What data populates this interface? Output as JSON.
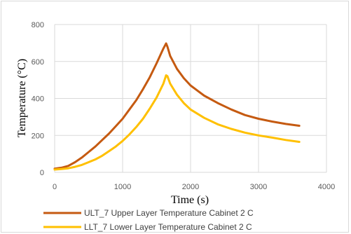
{
  "chart_data": {
    "type": "line",
    "title": "",
    "xlabel": "Time (s)",
    "ylabel": "Temperature (°C)",
    "xlim": [
      0,
      4000
    ],
    "ylim": [
      0,
      800
    ],
    "x_ticks": [
      0,
      1000,
      2000,
      3000,
      4000
    ],
    "y_ticks": [
      0,
      200,
      400,
      600,
      800
    ],
    "grid": true,
    "legend_position": "bottom",
    "series": [
      {
        "name": "ULT_7 Upper Layer Temperature Cabinet  2 C",
        "color": "#c55a11",
        "x": [
          0,
          100,
          200,
          300,
          400,
          500,
          600,
          700,
          800,
          900,
          1000,
          1100,
          1200,
          1300,
          1400,
          1500,
          1600,
          1640,
          1660,
          1700,
          1800,
          1900,
          2000,
          2200,
          2400,
          2600,
          2800,
          3000,
          3200,
          3400,
          3600
        ],
        "y": [
          20,
          25,
          35,
          55,
          80,
          110,
          140,
          175,
          210,
          250,
          290,
          340,
          390,
          450,
          515,
          590,
          670,
          698,
          680,
          630,
          560,
          510,
          470,
          415,
          375,
          340,
          310,
          290,
          275,
          262,
          252
        ]
      },
      {
        "name": "LLT_7 Lower Layer Temperature Cabinet  2 C",
        "color": "#ffc000",
        "x": [
          0,
          100,
          200,
          300,
          400,
          500,
          600,
          700,
          800,
          900,
          1000,
          1100,
          1200,
          1300,
          1400,
          1500,
          1600,
          1640,
          1660,
          1700,
          1800,
          1900,
          2000,
          2200,
          2400,
          2600,
          2800,
          3000,
          3200,
          3400,
          3600
        ],
        "y": [
          15,
          18,
          22,
          30,
          40,
          55,
          70,
          90,
          115,
          140,
          170,
          205,
          245,
          290,
          345,
          405,
          480,
          525,
          520,
          480,
          420,
          375,
          340,
          295,
          260,
          235,
          215,
          200,
          188,
          175,
          165
        ]
      }
    ]
  }
}
